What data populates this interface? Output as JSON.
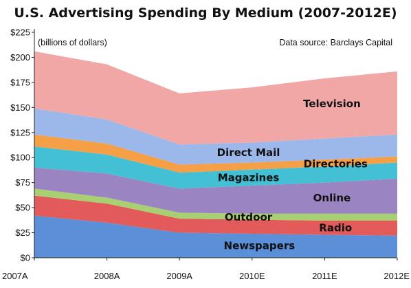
{
  "chart_data": {
    "type": "area",
    "stacked": true,
    "title": "U.S. Advertising Spending By Medium (2007-2012E)",
    "subtitle": "(billions of dollars)",
    "source_note": "Data source: Barclays Capital",
    "x": [
      "2007A",
      "2008A",
      "2009A",
      "2010E",
      "2011E",
      "2012E"
    ],
    "ylim": [
      0,
      225
    ],
    "yticks": [
      "$0",
      "$25",
      "$50",
      "$75",
      "$100",
      "$125",
      "$150",
      "$175",
      "$200",
      "$225"
    ],
    "ytick_values": [
      0,
      25,
      50,
      75,
      100,
      125,
      150,
      175,
      200,
      225
    ],
    "grid": false,
    "series": [
      {
        "name": "Newspapers",
        "color": "#5b8fd8",
        "values": [
          42,
          35,
          25,
          24,
          23,
          22
        ]
      },
      {
        "name": "Radio",
        "color": "#e25a5a",
        "values": [
          20,
          19,
          14,
          14,
          14,
          15
        ]
      },
      {
        "name": "Outdoor",
        "color": "#a8cf72",
        "values": [
          7,
          6,
          6,
          6,
          7,
          7
        ]
      },
      {
        "name": "Online",
        "color": "#9b84c2",
        "values": [
          21,
          24,
          24,
          28,
          31,
          35
        ]
      },
      {
        "name": "Magazines",
        "color": "#44c0d5",
        "values": [
          21,
          19,
          16,
          16,
          16,
          16
        ]
      },
      {
        "name": "Directories",
        "color": "#f5a047",
        "values": [
          12,
          11,
          8,
          7,
          7,
          6
        ]
      },
      {
        "name": "Direct Mail",
        "color": "#9cb8ea",
        "values": [
          26,
          24,
          20,
          20,
          21,
          22
        ]
      },
      {
        "name": "Television",
        "color": "#f2a7a7",
        "values": [
          57,
          55,
          51,
          55,
          60,
          63
        ]
      }
    ]
  }
}
